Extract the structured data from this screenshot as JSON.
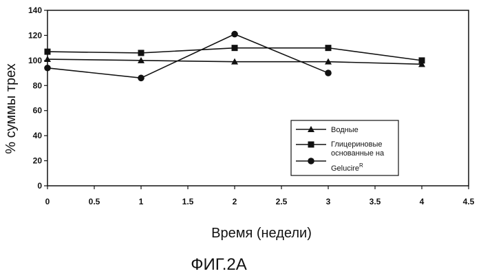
{
  "chart_data": {
    "type": "line",
    "ylabel": "% суммы трех",
    "xlabel": "Время (недели)",
    "caption": "ФИГ.2А",
    "xlim": [
      0,
      4.5
    ],
    "ylim": [
      0,
      140
    ],
    "xticks": [
      "0",
      "0.5",
      "1",
      "1.5",
      "2",
      "2.5",
      "3",
      "3.5",
      "4",
      "4.5"
    ],
    "yticks": [
      "0",
      "20",
      "40",
      "60",
      "80",
      "100",
      "120",
      "140"
    ],
    "grid": false,
    "legend_position": "right",
    "series": [
      {
        "name": "Водные",
        "marker": "triangle",
        "color": "#111111",
        "x": [
          0,
          1,
          2,
          3,
          4
        ],
        "y": [
          101,
          100,
          99,
          99,
          97
        ]
      },
      {
        "name": "Глицериновые основанные на",
        "marker": "square",
        "color": "#111111",
        "x": [
          0,
          1,
          2,
          3,
          4
        ],
        "y": [
          107,
          106,
          110,
          110,
          100
        ]
      },
      {
        "name": "Gelucire",
        "name_sup": "R",
        "marker": "circle",
        "color": "#111111",
        "x": [
          0,
          1,
          2,
          3
        ],
        "y": [
          94,
          86,
          121,
          90
        ]
      }
    ]
  }
}
